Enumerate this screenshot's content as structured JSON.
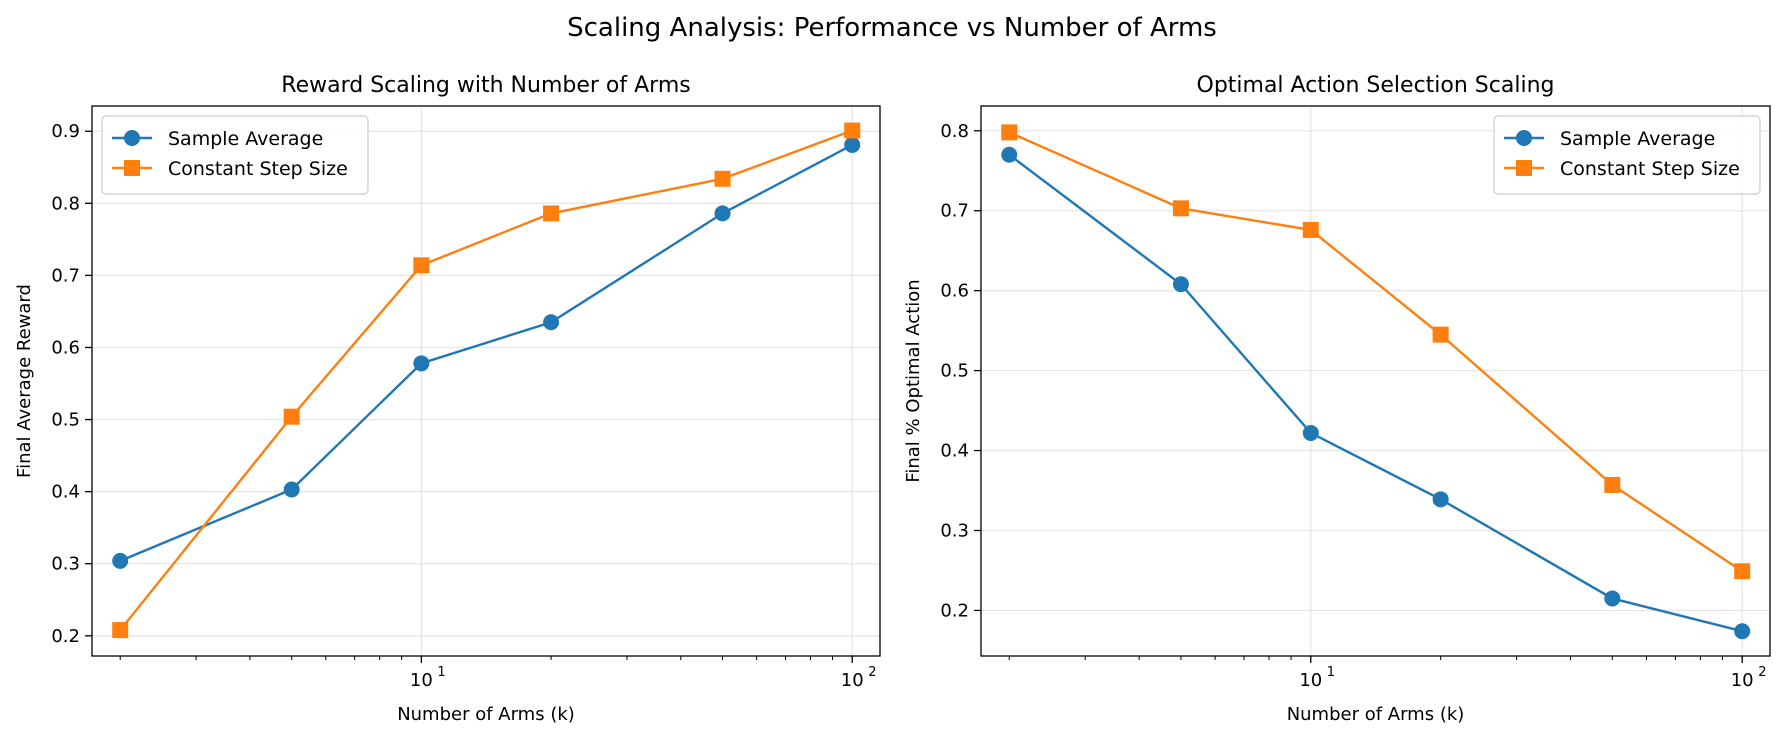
{
  "figure": {
    "title": "Scaling Analysis: Performance vs Number of Arms"
  },
  "chart_data": [
    {
      "type": "line",
      "title": "Reward Scaling with Number of Arms",
      "xlabel": "Number of Arms (k)",
      "ylabel": "Final Average Reward",
      "xscale": "log",
      "xlim": [
        1.72,
        116
      ],
      "ylim": [
        0.172,
        0.935
      ],
      "x": [
        2,
        5,
        10,
        20,
        50,
        100
      ],
      "xticks": [
        {
          "value": 10,
          "base": "10",
          "exp": "1"
        },
        {
          "value": 100,
          "base": "10",
          "exp": "2"
        }
      ],
      "yticks": [
        0.2,
        0.3,
        0.4,
        0.5,
        0.6,
        0.7,
        0.8,
        0.9
      ],
      "grid": true,
      "legend_position": "upper-left",
      "series": [
        {
          "name": "Sample Average",
          "color": "#1f77b4",
          "marker": "circle",
          "values": [
            0.304,
            0.403,
            0.578,
            0.635,
            0.786,
            0.881
          ]
        },
        {
          "name": "Constant Step Size",
          "color": "#ff7f0e",
          "marker": "square",
          "values": [
            0.208,
            0.504,
            0.714,
            0.786,
            0.834,
            0.901
          ]
        }
      ]
    },
    {
      "type": "line",
      "title": "Optimal Action Selection Scaling",
      "xlabel": "Number of Arms (k)",
      "ylabel": "Final % Optimal Action",
      "xscale": "log",
      "xlim": [
        1.72,
        116
      ],
      "ylim": [
        0.143,
        0.831
      ],
      "x": [
        2,
        5,
        10,
        20,
        50,
        100
      ],
      "xticks": [
        {
          "value": 10,
          "base": "10",
          "exp": "1"
        },
        {
          "value": 100,
          "base": "10",
          "exp": "2"
        }
      ],
      "yticks": [
        0.2,
        0.3,
        0.4,
        0.5,
        0.6,
        0.7,
        0.8
      ],
      "grid": true,
      "legend_position": "upper-right",
      "series": [
        {
          "name": "Sample Average",
          "color": "#1f77b4",
          "marker": "circle",
          "values": [
            0.77,
            0.608,
            0.422,
            0.339,
            0.215,
            0.174
          ]
        },
        {
          "name": "Constant Step Size",
          "color": "#ff7f0e",
          "marker": "square",
          "values": [
            0.798,
            0.703,
            0.676,
            0.545,
            0.357,
            0.249
          ]
        }
      ]
    }
  ]
}
